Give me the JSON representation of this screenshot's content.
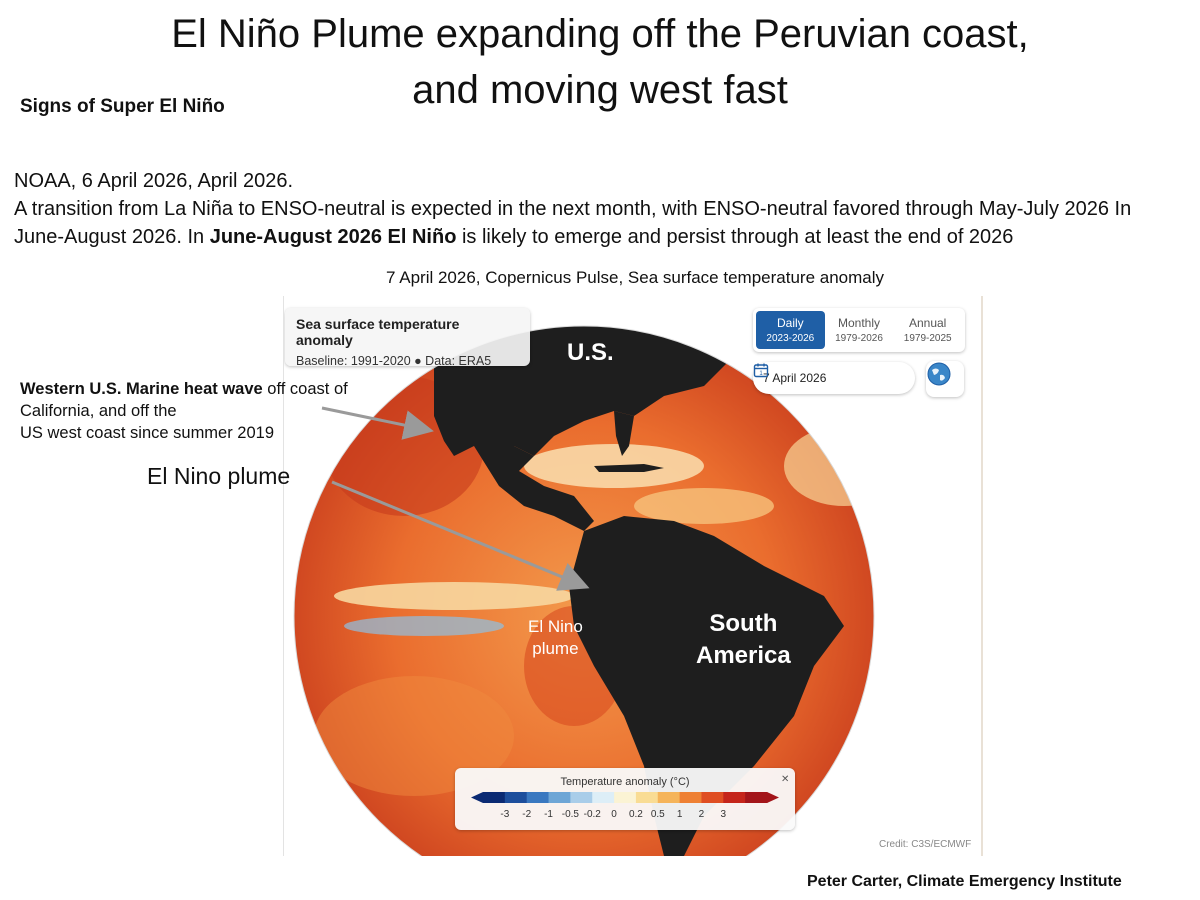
{
  "title_line1": "El Niño Plume expanding off the Peruvian coast,",
  "title_line2": "and moving west fast",
  "subtitle": "Signs of Super El Niño",
  "noaa": {
    "line1": "NOAA, 6 April 2026,  April 2026.",
    "line2": " A transition from La Niña to ENSO-neutral is expected in the next month, with ENSO-neutral favored through May-July 2026 In June-August 2026. In ",
    "bold1": "June-August 2026  El Niño",
    "line3": " is likely to emerge and persist through at least the end of 2026"
  },
  "map_caption": "7 April 2026, Copernicus Pulse, Sea surface temperature anomaly",
  "info_card": {
    "title": "Sea surface temperature anomaly",
    "subtitle": "Baseline: 1991-2020 ● Data: ERA5"
  },
  "tabs": [
    {
      "label": "Daily",
      "range": "2023-2026",
      "active": true
    },
    {
      "label": "Monthly",
      "range": "1979-2026",
      "active": false
    },
    {
      "label": "Annual",
      "range": "1979-2025",
      "active": false
    }
  ],
  "date_value": "7 April 2026",
  "icons": {
    "calendar": "calendar-icon",
    "globe": "globe-icon",
    "collapse": "collapse-icon"
  },
  "legend": {
    "title": "Temperature anomaly (°C)",
    "ticks": [
      "-3",
      "-2",
      "-1",
      "-0.5",
      "-0.2",
      "0",
      "0.2",
      "0.5",
      "1",
      "2",
      "3"
    ],
    "colors": [
      "#0b2a73",
      "#1d4e9c",
      "#3a78c0",
      "#6ea6d6",
      "#a9cde9",
      "#ddeef7",
      "#fbf3d4",
      "#f9dc94",
      "#f5b45a",
      "#ee8033",
      "#df4e22",
      "#c5251b",
      "#a3151a"
    ]
  },
  "credit": "Credit: C3S/ECMWF",
  "map_labels": {
    "us": "U.S.",
    "south_america_1": "South",
    "south_america_2": "America",
    "plume_1": "El Nino",
    "plume_2": "plume"
  },
  "annotation_heatwave": {
    "bold": "Western U.S. Marine heat wave",
    "rest1": " off coast of California,  and off the",
    "rest2": " US west coast since summer 2019"
  },
  "annotation_plume": "El Nino plume",
  "footer": "Peter Carter, Climate Emergency Institute"
}
